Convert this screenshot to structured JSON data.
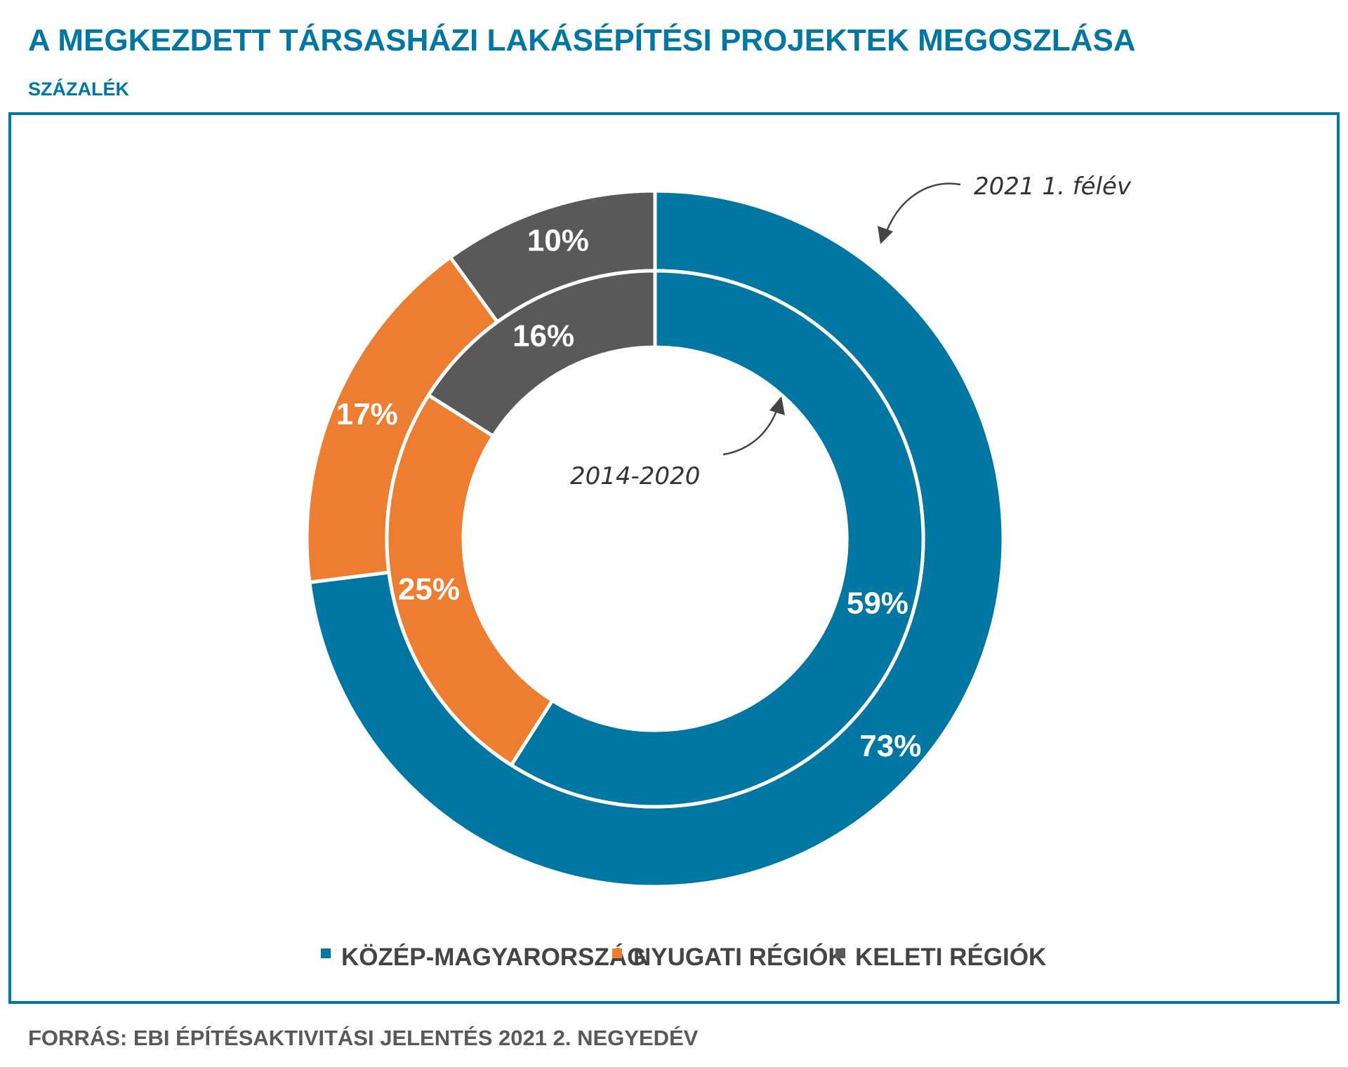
{
  "title": "A MEGKEZDETT TÁRSASHÁZI LAKÁSÉPÍTÉSI PROJEKTEK MEGOSZLÁSA",
  "subtitle": "SZÁZALÉK",
  "source": "FORRÁS: EBI ÉPÍTÉSAKTIVITÁSI JELENTÉS 2021 2. NEGYEDÉV",
  "colors": {
    "accent": "#0077a3",
    "kozep": "#0077a3",
    "nyugati": "#ed7d31",
    "keleti": "#595959"
  },
  "chart_data": {
    "type": "pie",
    "subtype": "nested-donut",
    "categories": [
      "KÖZÉP-MAGYARORSZÁG",
      "NYUGATI RÉGIÓK",
      "KELETI RÉGIÓK"
    ],
    "series": [
      {
        "name": "2021 1. félév",
        "ring": "outer",
        "values": [
          73,
          17,
          10
        ],
        "labels": [
          "73%",
          "17%",
          "10%"
        ]
      },
      {
        "name": "2014-2020",
        "ring": "inner",
        "values": [
          59,
          25,
          16
        ],
        "labels": [
          "59%",
          "25%",
          "16%"
        ]
      }
    ],
    "legend": {
      "placement": "bottom",
      "items": [
        "KÖZÉP-MAGYARORSZÁG",
        "NYUGATI RÉGIÓK",
        "KELETI RÉGIÓK"
      ]
    },
    "annotations": [
      "2021 1. félév",
      "2014-2020"
    ]
  }
}
